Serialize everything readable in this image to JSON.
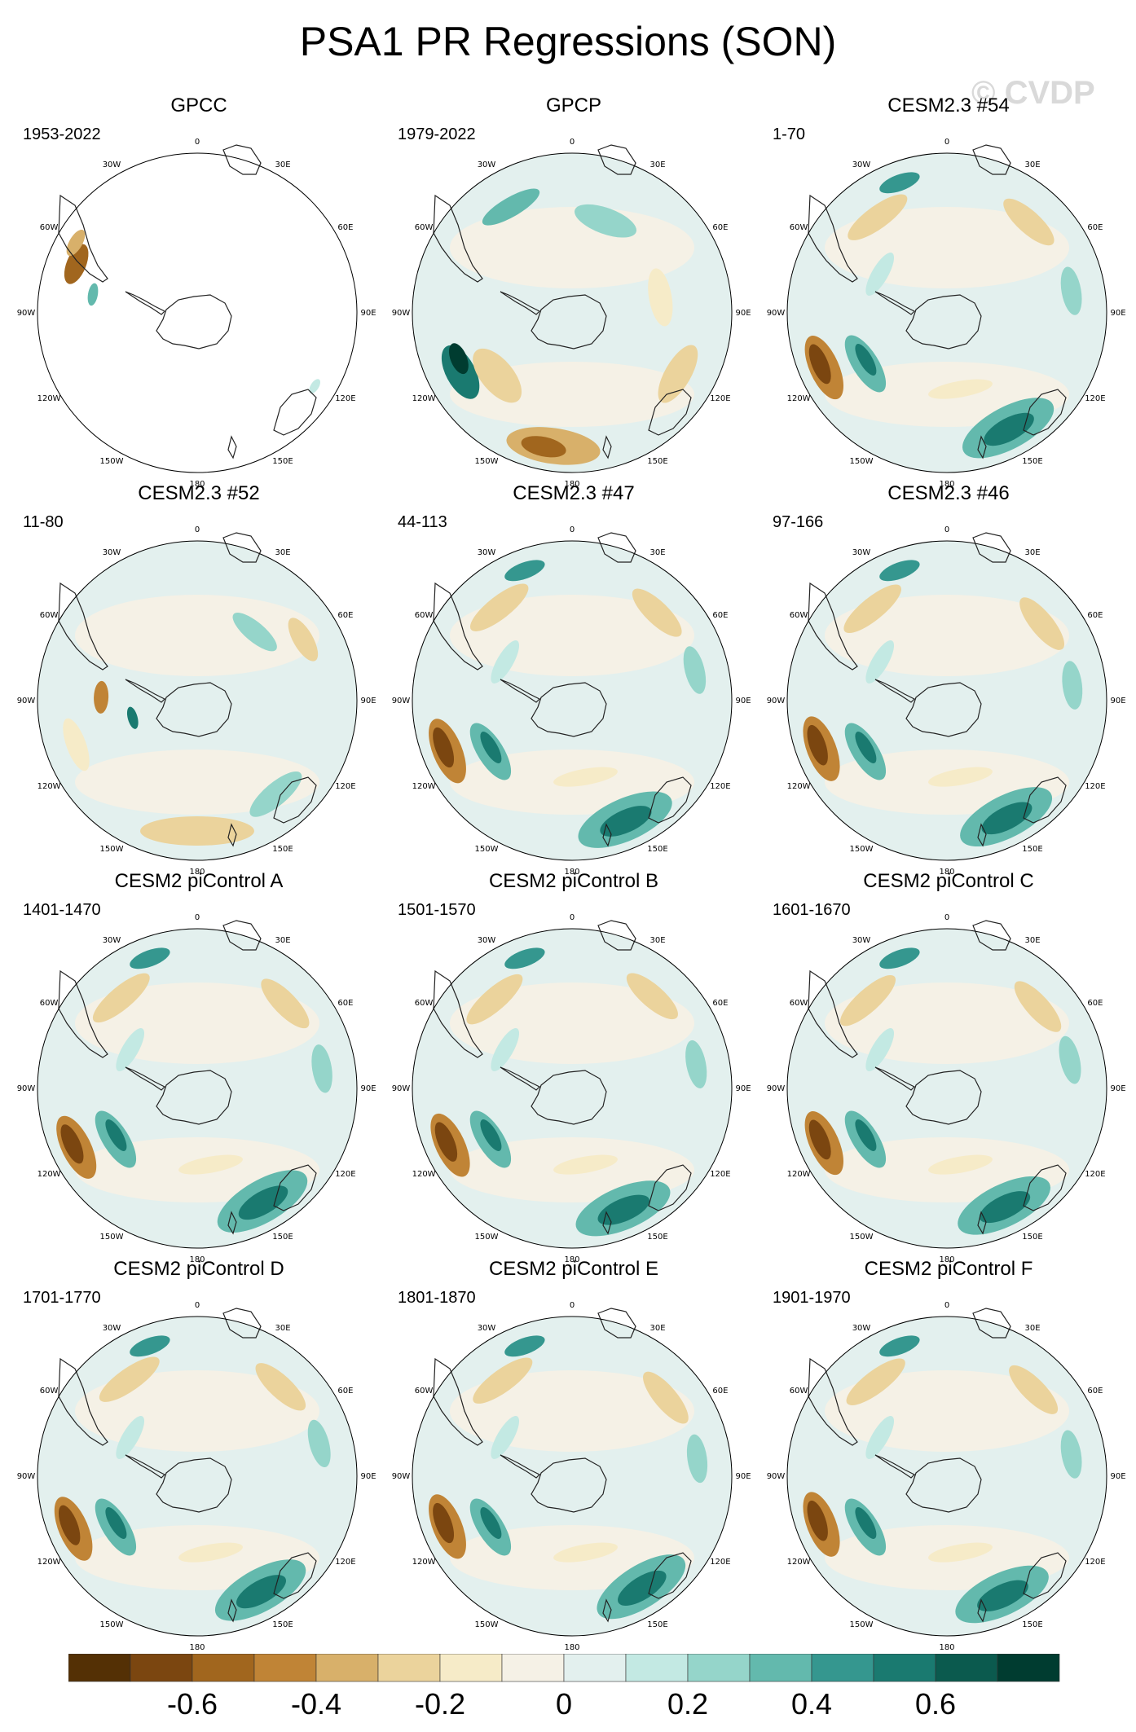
{
  "figure": {
    "title": "PSA1 PR Regressions (SON)",
    "watermark": "© CVDP"
  },
  "panels": [
    {
      "title": "GPCC",
      "period": "1953-2022",
      "style": "gpcc"
    },
    {
      "title": "GPCP",
      "period": "1979-2022",
      "style": "gpcp"
    },
    {
      "title": "CESM2.3 #54",
      "period": "1-70",
      "style": "model"
    },
    {
      "title": "CESM2.3 #52",
      "period": "11-80",
      "style": "weak"
    },
    {
      "title": "CESM2.3 #47",
      "period": "44-113",
      "style": "model"
    },
    {
      "title": "CESM2.3 #46",
      "period": "97-166",
      "style": "model"
    },
    {
      "title": "CESM2 piControl A",
      "period": "1401-1470",
      "style": "model"
    },
    {
      "title": "CESM2 piControl B",
      "period": "1501-1570",
      "style": "model"
    },
    {
      "title": "CESM2 piControl C",
      "period": "1601-1670",
      "style": "model"
    },
    {
      "title": "CESM2 piControl D",
      "period": "1701-1770",
      "style": "model"
    },
    {
      "title": "CESM2 piControl E",
      "period": "1801-1870",
      "style": "model"
    },
    {
      "title": "CESM2 piControl F",
      "period": "1901-1970",
      "style": "model"
    }
  ],
  "map_labels": [
    "0",
    "30E",
    "60E",
    "90E",
    "120E",
    "150E",
    "180",
    "150W",
    "120W",
    "90W",
    "60W",
    "30W"
  ],
  "colorbar": {
    "colors": [
      "#543005",
      "#7b4610",
      "#a1661e",
      "#c08436",
      "#d8b06a",
      "#ebd39c",
      "#f6ebc8",
      "#f5f1e6",
      "#e3f0ee",
      "#c3e9e3",
      "#95d5ca",
      "#63b9ad",
      "#35978f",
      "#1a7a70",
      "#0b5a4e",
      "#003c30"
    ],
    "tick_labels": [
      "-0.6",
      "-0.4",
      "-0.2",
      "0",
      "0.2",
      "0.4",
      "0.6"
    ]
  }
}
